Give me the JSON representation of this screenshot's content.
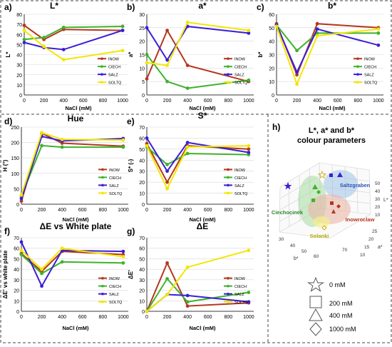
{
  "colors": {
    "INOW": "#b5371f",
    "CIECH": "#3fb22c",
    "SALZ": "#3a1fd6",
    "SOLTQ": "#f2e600",
    "border": "#444444"
  },
  "chart_data": [
    {
      "id": "a",
      "type": "line",
      "panel_label": "a)",
      "title": "L*",
      "ylabel": "L*",
      "xlabel": "NaCl (mM)",
      "x": [
        0,
        200,
        400,
        1000
      ],
      "xlim": [
        0,
        1050
      ],
      "xticks": [
        0,
        200,
        400,
        600,
        800,
        1000
      ],
      "ylim": [
        0,
        80
      ],
      "yticks": [
        0,
        10,
        20,
        30,
        40,
        50,
        60,
        70,
        80
      ],
      "series": [
        {
          "name": "INOW",
          "values": [
            69,
            55,
            65,
            64
          ]
        },
        {
          "name": "CIECH",
          "values": [
            55,
            57,
            67,
            68
          ]
        },
        {
          "name": "SALZ",
          "values": [
            52,
            47,
            45,
            64
          ]
        },
        {
          "name": "SOLTQ",
          "values": [
            64,
            48,
            35,
            44
          ]
        }
      ]
    },
    {
      "id": "b",
      "type": "line",
      "panel_label": "b)",
      "title": "a*",
      "ylabel": "a*",
      "xlabel": "NaCl (mM)",
      "x": [
        0,
        200,
        400,
        1000
      ],
      "xlim": [
        0,
        1050
      ],
      "xticks": [
        0,
        200,
        400,
        600,
        800,
        1000
      ],
      "ylim": [
        0,
        30
      ],
      "yticks": [
        0,
        5,
        10,
        15,
        20,
        25,
        30
      ],
      "series": [
        {
          "name": "INOW",
          "values": [
            6,
            24,
            11,
            5
          ]
        },
        {
          "name": "CIECH",
          "values": [
            15,
            5,
            2.5,
            5.5
          ]
        },
        {
          "name": "SALZ",
          "values": [
            25,
            13,
            25.5,
            23
          ]
        },
        {
          "name": "SOLTQ",
          "values": [
            12,
            11,
            27,
            24
          ]
        }
      ]
    },
    {
      "id": "c",
      "type": "line",
      "panel_label": "c)",
      "title": "b*",
      "ylabel": "b*",
      "xlabel": "NaCl (mM)",
      "x": [
        0,
        200,
        400,
        1000
      ],
      "xlim": [
        0,
        1050
      ],
      "xticks": [
        0,
        200,
        400,
        600,
        800,
        1000
      ],
      "ylim": [
        0,
        60
      ],
      "yticks": [
        0,
        10,
        20,
        30,
        40,
        50,
        60
      ],
      "series": [
        {
          "name": "INOW",
          "values": [
            53,
            15,
            53,
            50
          ]
        },
        {
          "name": "CIECH",
          "values": [
            52,
            33,
            46,
            46
          ]
        },
        {
          "name": "SALZ",
          "values": [
            52,
            17,
            49,
            37
          ]
        },
        {
          "name": "SOLTQ",
          "values": [
            51,
            8,
            44,
            49
          ]
        }
      ]
    },
    {
      "id": "d",
      "type": "line",
      "panel_label": "d)",
      "title": "Hue",
      "ylabel": "H (°)",
      "xlabel": "NaCl (mM)",
      "x": [
        0,
        200,
        400,
        1000
      ],
      "xlim": [
        0,
        1050
      ],
      "xticks": [
        0,
        200,
        400,
        600,
        800,
        1000
      ],
      "ylim": [
        0,
        250
      ],
      "yticks": [
        0,
        50,
        100,
        150,
        200,
        250
      ],
      "series": [
        {
          "name": "INOW",
          "values": [
            10,
            230,
            198,
            188
          ]
        },
        {
          "name": "CIECH",
          "values": [
            25,
            190,
            185,
            185
          ]
        },
        {
          "name": "SALZ",
          "values": [
            18,
            220,
            205,
            213
          ]
        },
        {
          "name": "SOLTQ",
          "values": [
            30,
            232,
            210,
            208
          ]
        }
      ]
    },
    {
      "id": "e",
      "type": "line",
      "panel_label": "e)",
      "title": "S*",
      "ylabel": "S* (-)",
      "xlabel": "NaCl (mM)",
      "x": [
        0,
        200,
        400,
        1000
      ],
      "xlim": [
        0,
        1050
      ],
      "xticks": [
        0,
        200,
        400,
        600,
        800,
        1000
      ],
      "ylim": [
        0,
        70
      ],
      "yticks": [
        0,
        10,
        20,
        30,
        40,
        50,
        60,
        70
      ],
      "series": [
        {
          "name": "INOW",
          "values": [
            55,
            20,
            53,
            50
          ]
        },
        {
          "name": "CIECH",
          "values": [
            52,
            36,
            46,
            45
          ]
        },
        {
          "name": "SALZ",
          "values": [
            60,
            30,
            56,
            47
          ]
        },
        {
          "name": "SOLTQ",
          "values": [
            53,
            14,
            52,
            53
          ]
        }
      ]
    },
    {
      "id": "f",
      "type": "line",
      "panel_label": "f)",
      "title": "ΔE vs White plate",
      "ylabel": "ΔE' vs white plate",
      "xlabel": "NaCl (mM)",
      "x": [
        0,
        200,
        400,
        1000
      ],
      "xlim": [
        0,
        1050
      ],
      "xticks": [
        0,
        200,
        400,
        600,
        800,
        1000
      ],
      "ylim": [
        0,
        70
      ],
      "yticks": [
        0,
        10,
        20,
        30,
        40,
        50,
        60,
        70
      ],
      "series": [
        {
          "name": "INOW",
          "values": [
            55,
            38,
            57,
            54
          ]
        },
        {
          "name": "CIECH",
          "values": [
            54,
            36,
            47,
            46
          ]
        },
        {
          "name": "SALZ",
          "values": [
            66,
            24,
            58,
            57
          ]
        },
        {
          "name": "SOLTQ",
          "values": [
            58,
            40,
            60,
            52
          ]
        }
      ]
    },
    {
      "id": "g",
      "type": "line",
      "panel_label": "g)",
      "title": "ΔE",
      "ylabel": "ΔE'",
      "xlabel": "NaCl (mM)",
      "x": [
        0,
        200,
        400,
        1000
      ],
      "xlim": [
        0,
        1050
      ],
      "xticks": [
        0,
        200,
        400,
        600,
        800,
        1000
      ],
      "ylim": [
        0,
        70
      ],
      "yticks": [
        0,
        10,
        20,
        30,
        40,
        50,
        60,
        70
      ],
      "series": [
        {
          "name": "INOW",
          "values": [
            0,
            46,
            5,
            8
          ]
        },
        {
          "name": "CIECH",
          "values": [
            0,
            31,
            9,
            18
          ]
        },
        {
          "name": "SALZ",
          "values": [
            0,
            16,
            15,
            9
          ]
        },
        {
          "name": "SOLTQ",
          "values": [
            0,
            16,
            42,
            58
          ]
        }
      ]
    }
  ],
  "panel_h": {
    "label": "h)",
    "title_line1": "L*, a* and b*",
    "title_line2": "colour parameters",
    "clusters": [
      "Saltzgraben",
      "Ciechocinek",
      "Inowroclaw",
      "Solanki"
    ],
    "axis_labels": {
      "L": "L*",
      "a": "a*",
      "b": "b*"
    },
    "L_ticks": [
      "50",
      "40",
      "30",
      "20",
      "10"
    ],
    "a_ticks": [
      "25",
      "20",
      "15",
      "10"
    ],
    "b_ticks": [
      "30",
      "40",
      "50",
      "60",
      "70"
    ],
    "legend": [
      {
        "shape": "star",
        "label": "0 mM"
      },
      {
        "shape": "square",
        "label": "200 mM"
      },
      {
        "shape": "triangle",
        "label": "400 mM"
      },
      {
        "shape": "diamond",
        "label": "1000 mM"
      }
    ]
  }
}
